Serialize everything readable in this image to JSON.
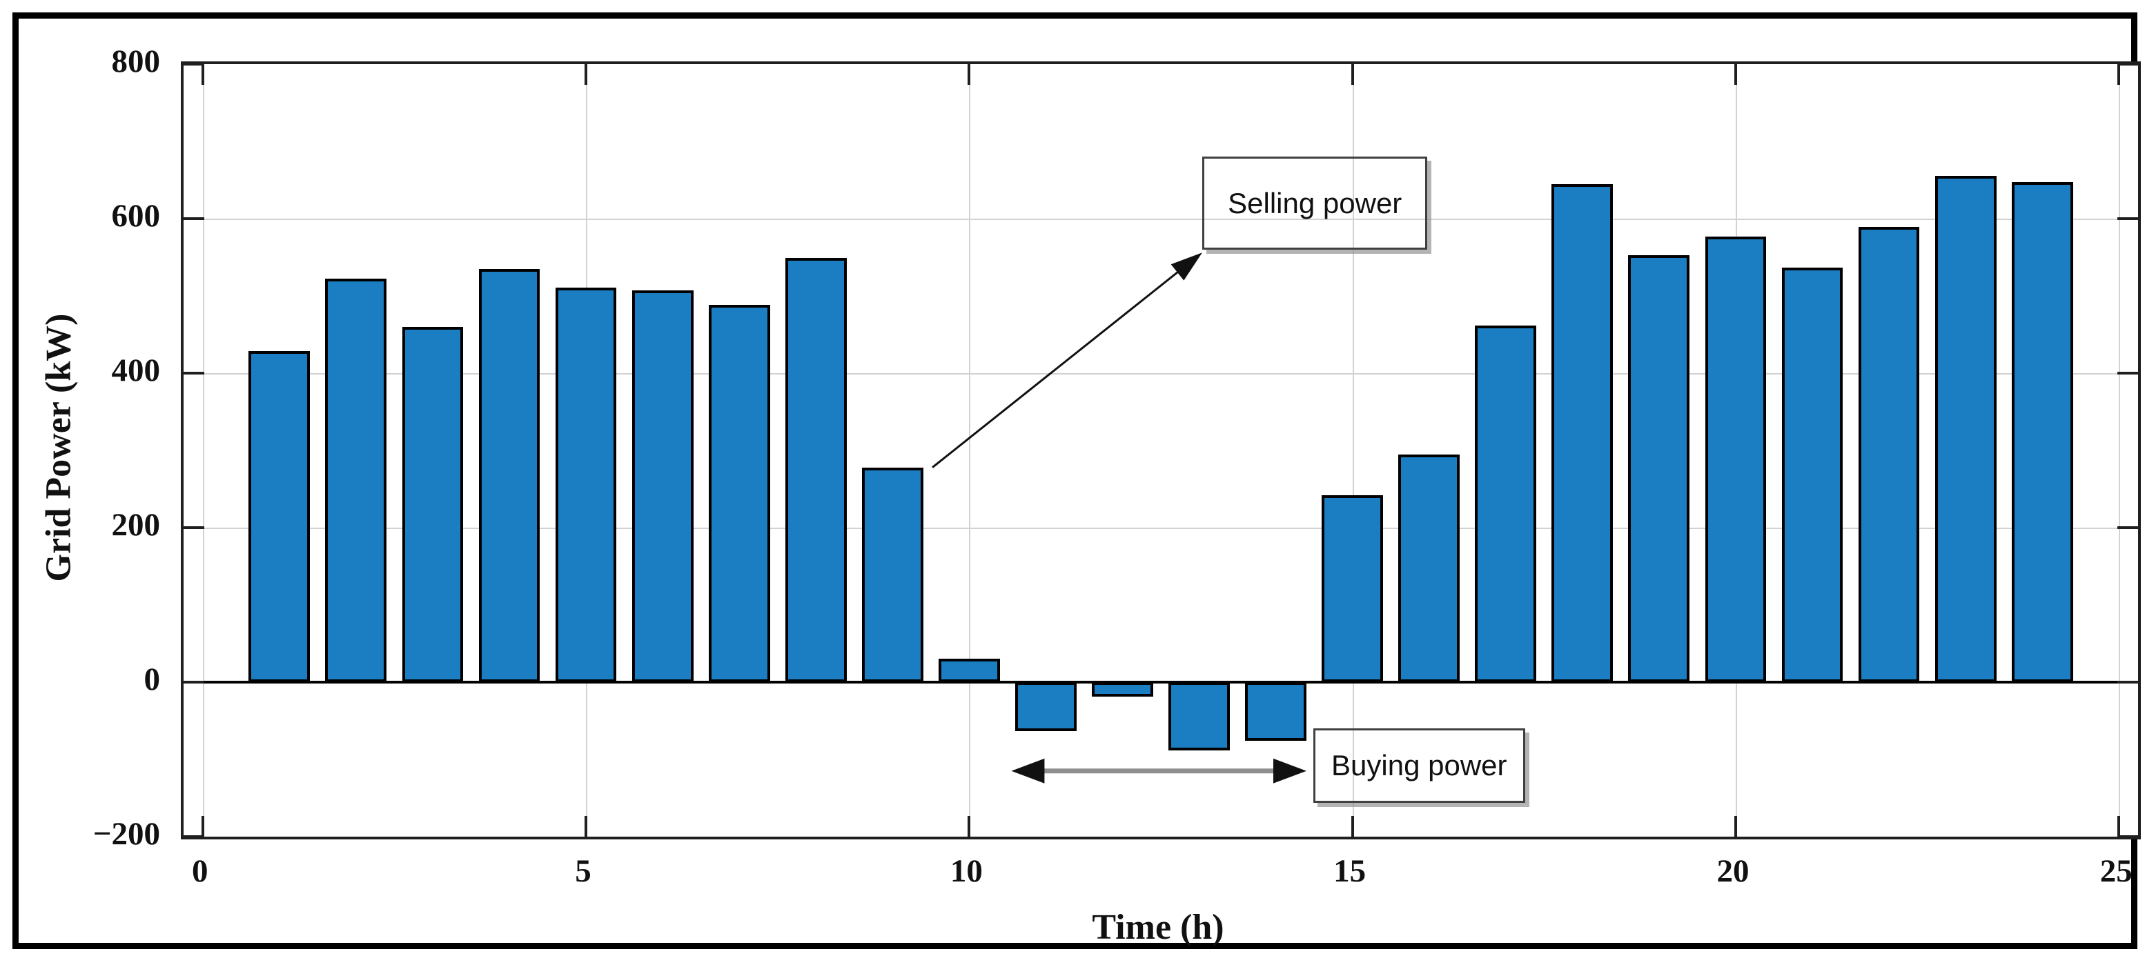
{
  "figure": {
    "background_color": "#ffffff",
    "frame_border_color": "#000000"
  },
  "chart_data": {
    "type": "bar",
    "title": "",
    "xlabel": "Time (h)",
    "ylabel": "Grid Power (kW)",
    "x": [
      1,
      2,
      3,
      4,
      5,
      6,
      7,
      8,
      9,
      10,
      11,
      12,
      13,
      14,
      15,
      16,
      17,
      18,
      19,
      20,
      21,
      22,
      23,
      24
    ],
    "values": [
      429,
      522,
      460,
      535,
      511,
      507,
      488,
      549,
      278,
      30,
      -63,
      -19,
      -88,
      -76,
      242,
      295,
      462,
      645,
      553,
      577,
      537,
      589,
      655,
      647
    ],
    "bar_width": 0.8,
    "xlim": [
      -0.25,
      25.25
    ],
    "ylim": [
      -200,
      800
    ],
    "xticks": [
      0,
      5,
      10,
      15,
      20,
      25
    ],
    "xtick_labels": [
      "0",
      "5",
      "10",
      "15",
      "20",
      "25"
    ],
    "yticks": [
      -200,
      0,
      200,
      400,
      600,
      800
    ],
    "ytick_labels": [
      "−200",
      "0",
      "200",
      "400",
      "600",
      "800"
    ],
    "grid": true,
    "legend": "none",
    "colors": {
      "bar_fill": "#1b7ec2",
      "bar_edge": "#000000",
      "gridline": "#d2d2d2",
      "axis": "#1f1f1f",
      "text": "#111111"
    },
    "annotations": [
      {
        "id": "selling-power",
        "label": "Selling power",
        "box": {
          "x1": 13.04,
          "x2": 15.98,
          "y_top": 680,
          "y_bottom": 560
        },
        "arrow": {
          "x1": 9.52,
          "y1": 278,
          "x2": 13.04,
          "y2": 556,
          "double": false,
          "shaft_color": "#111111",
          "head_color": "#111111",
          "shaft_width": 3,
          "head_length": 46,
          "head_halfwidth": 15
        }
      },
      {
        "id": "buying-power",
        "label": "Buying power",
        "box": {
          "x1": 14.49,
          "x2": 17.25,
          "y_top": -60,
          "y_bottom": -156
        },
        "arrow": {
          "x1": 10.55,
          "y1": -115,
          "x2": 14.4,
          "y2": -115,
          "double": true,
          "shaft_color": "#8f8f8f",
          "head_color": "#111111",
          "shaft_width": 7,
          "head_length": 48,
          "head_halfwidth": 18
        }
      }
    ]
  }
}
